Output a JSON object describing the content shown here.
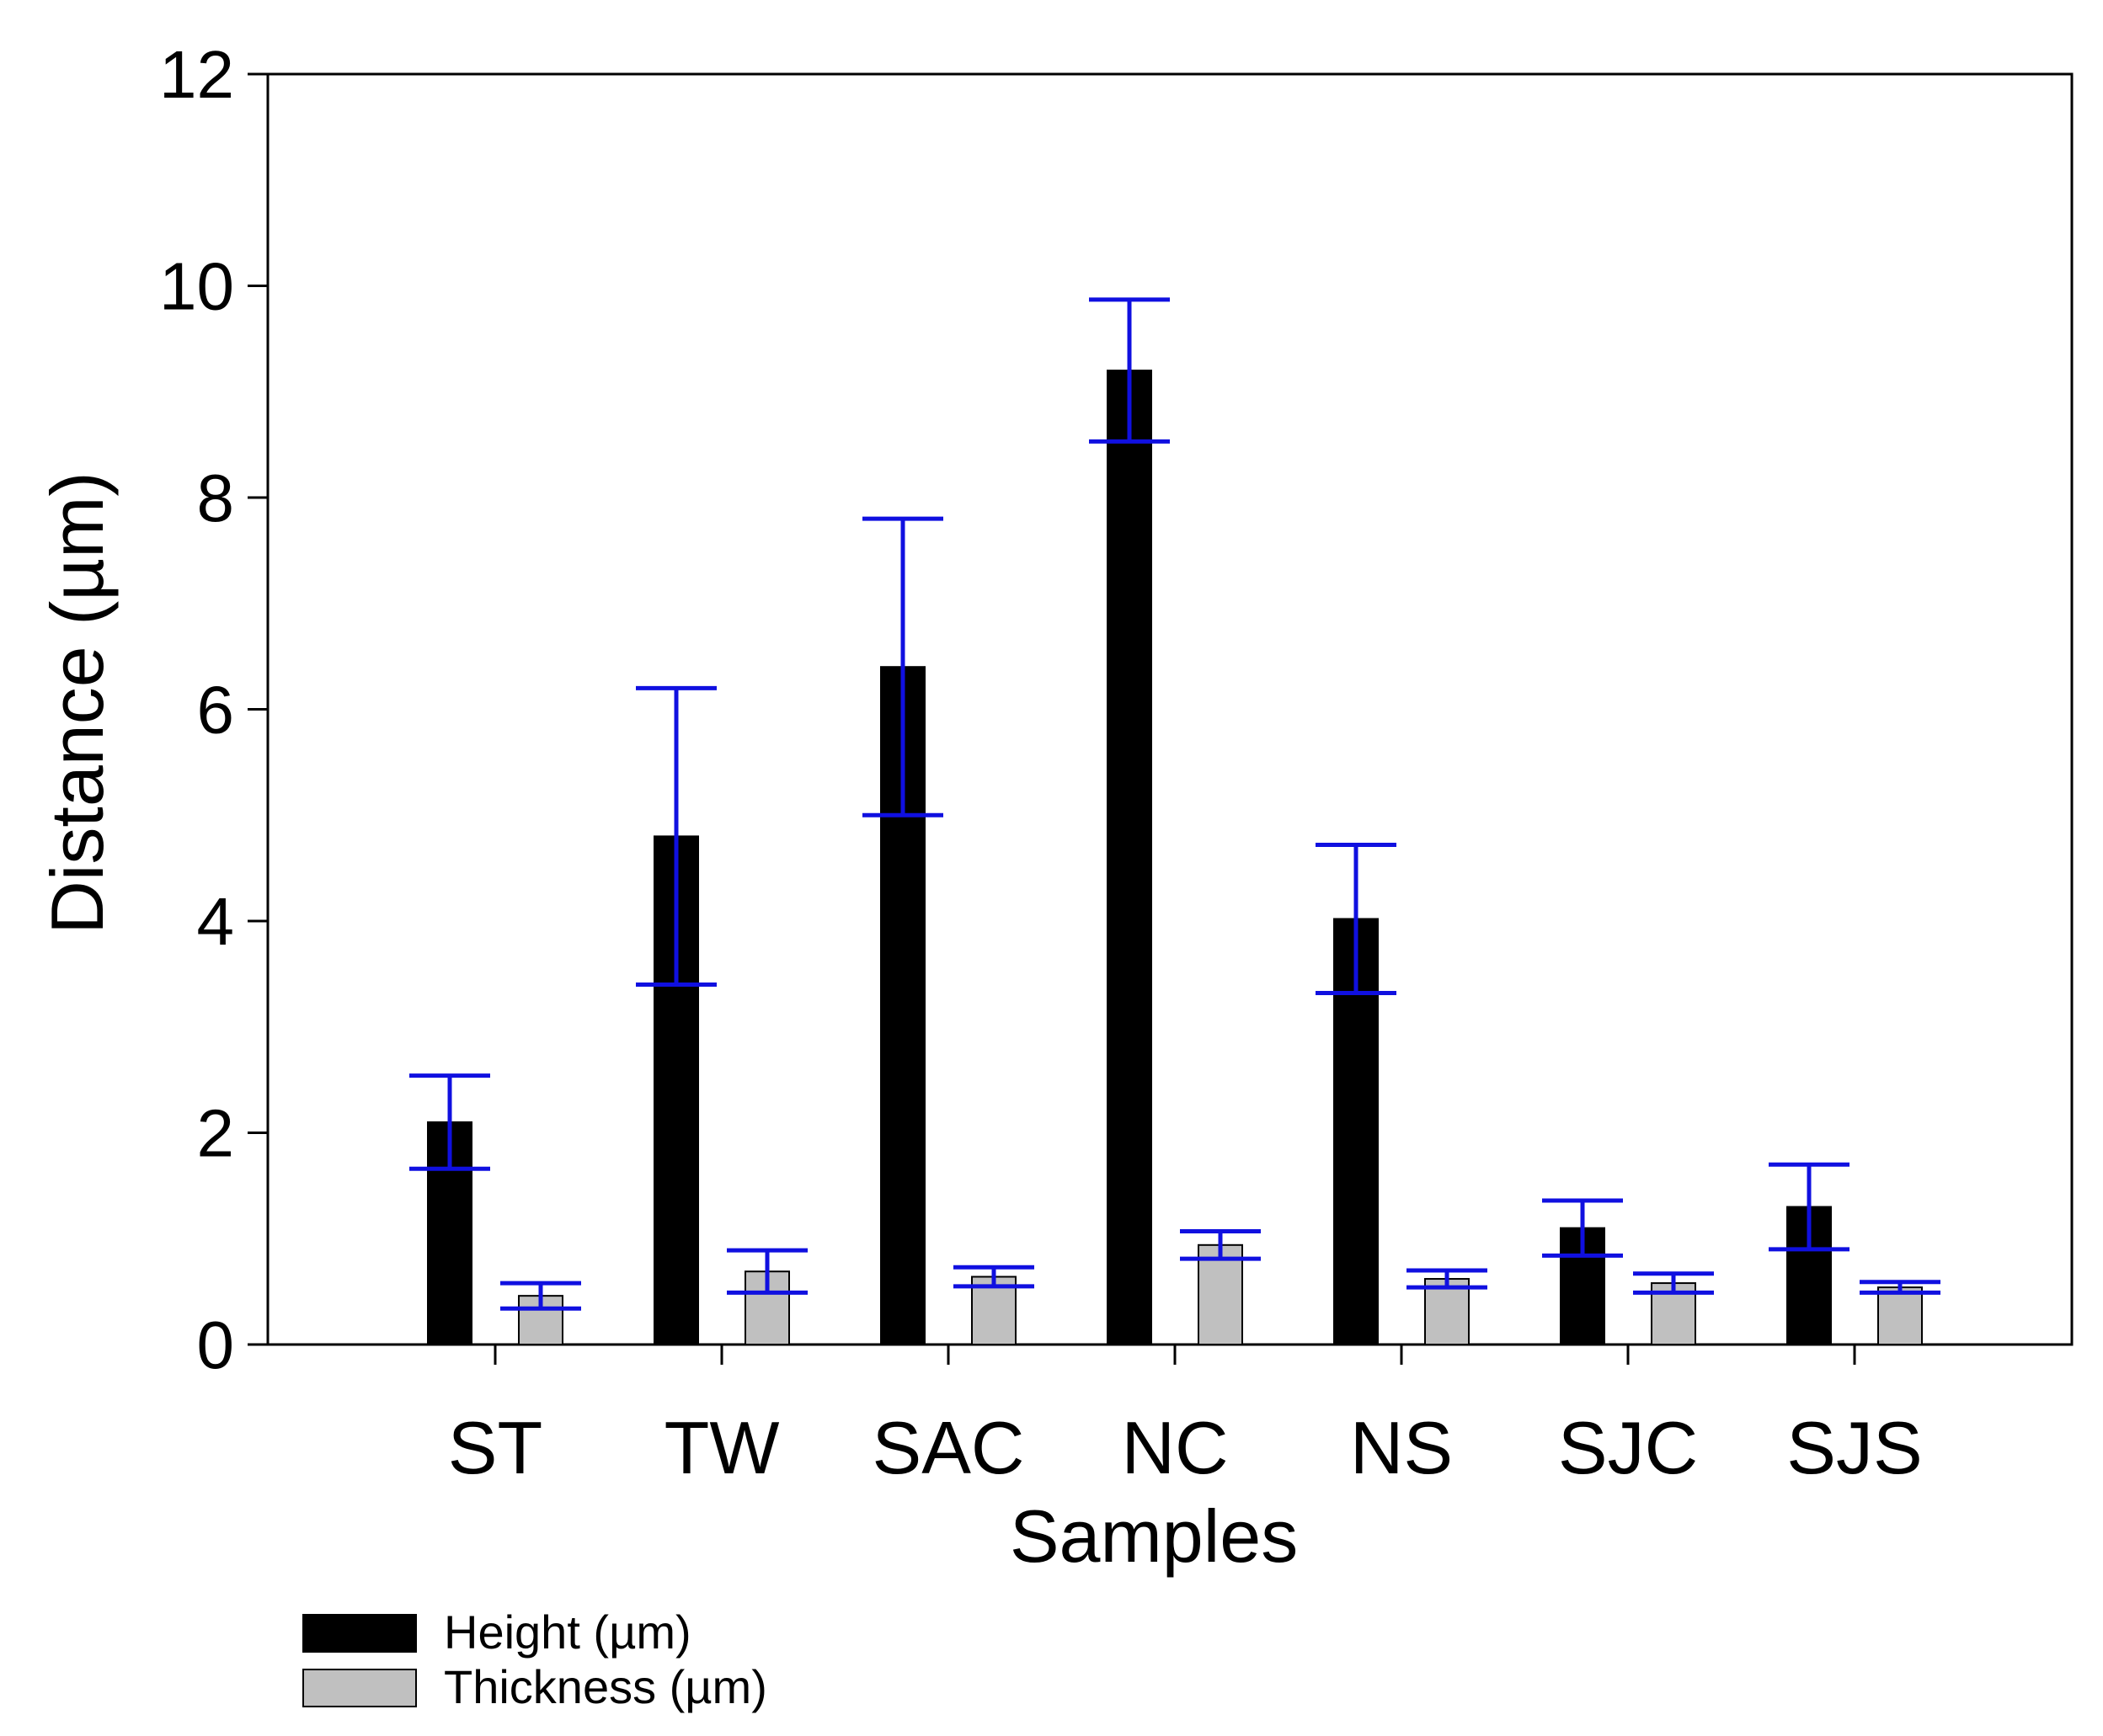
{
  "chart_data": {
    "type": "bar",
    "title": "",
    "xlabel": "Samples",
    "ylabel": "Distance (µm)",
    "ylim": [
      0,
      12
    ],
    "yticks": [
      0,
      2,
      4,
      6,
      8,
      10,
      12
    ],
    "grid": false,
    "legend_position": "bottom-left",
    "categories": [
      "ST",
      "TW",
      "SAC",
      "NC",
      "NS",
      "SJC",
      "SJS"
    ],
    "series": [
      {
        "name": "Height (µm)",
        "color": "#000000",
        "values": [
          2.1,
          4.8,
          6.4,
          9.2,
          4.02,
          1.1,
          1.3
        ],
        "error": [
          0.44,
          1.4,
          1.4,
          0.67,
          0.7,
          0.26,
          0.4
        ]
      },
      {
        "name": "Thickness (µm)",
        "color": "#c0c0c0",
        "values": [
          0.46,
          0.69,
          0.64,
          0.94,
          0.62,
          0.58,
          0.54
        ],
        "error": [
          0.12,
          0.2,
          0.09,
          0.13,
          0.08,
          0.09,
          0.05
        ]
      }
    ],
    "error_bar_color": "#1010e0"
  }
}
